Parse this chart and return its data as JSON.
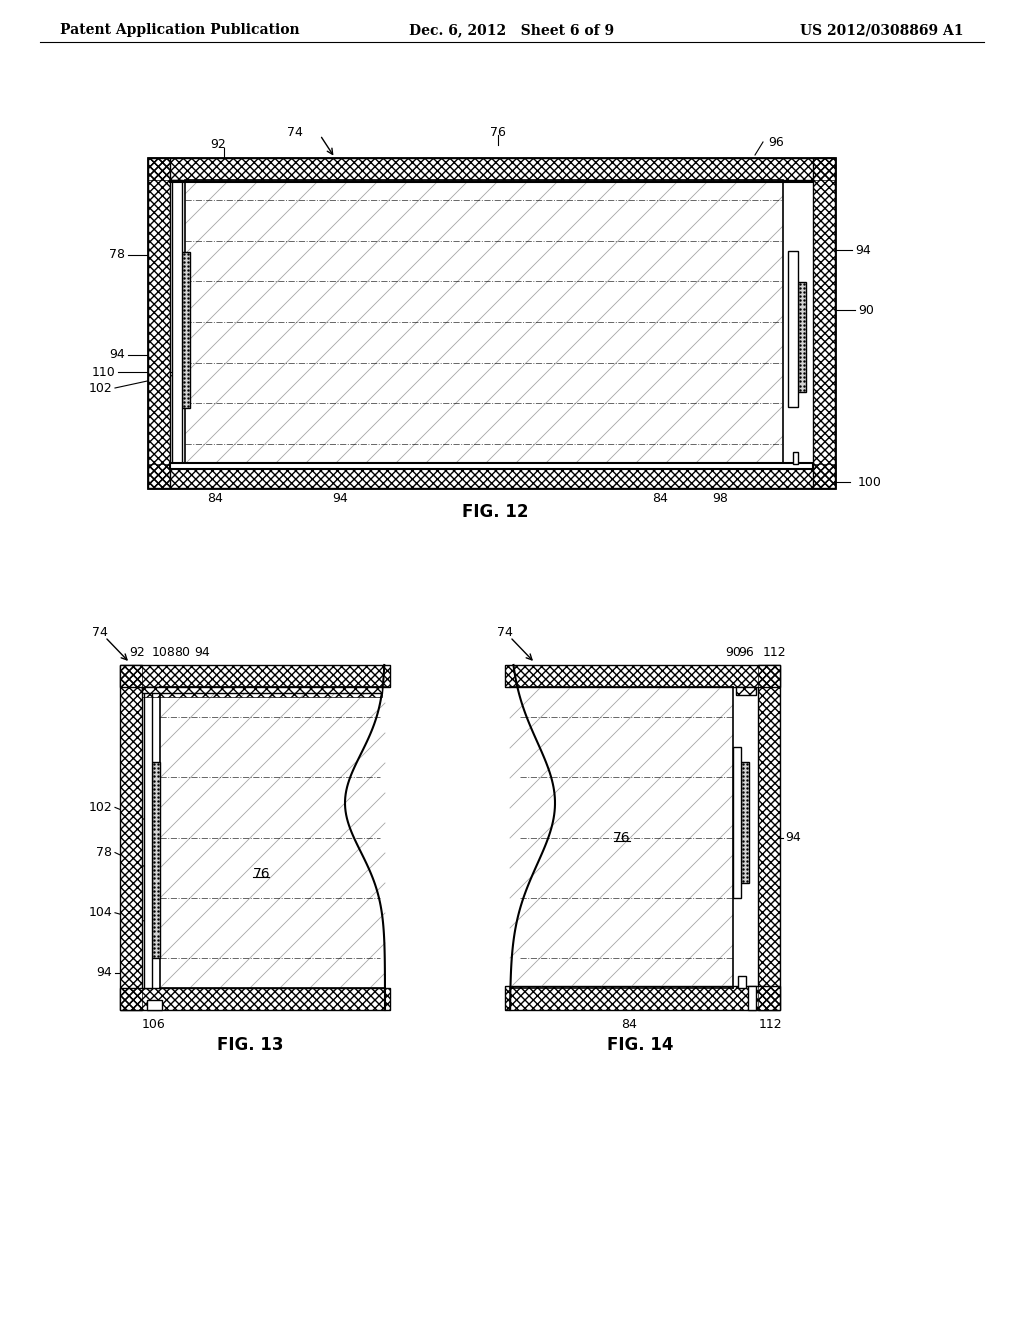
{
  "header_left": "Patent Application Publication",
  "header_center": "Dec. 6, 2012   Sheet 6 of 9",
  "header_right": "US 2012/0308869 A1",
  "fig12_label": "FIG. 12",
  "fig13_label": "FIG. 13",
  "fig14_label": "FIG. 14",
  "bg_color": "#ffffff",
  "line_color": "#000000",
  "hatch_color": "#555555",
  "light_gray": "#cccccc",
  "medium_gray": "#888888"
}
